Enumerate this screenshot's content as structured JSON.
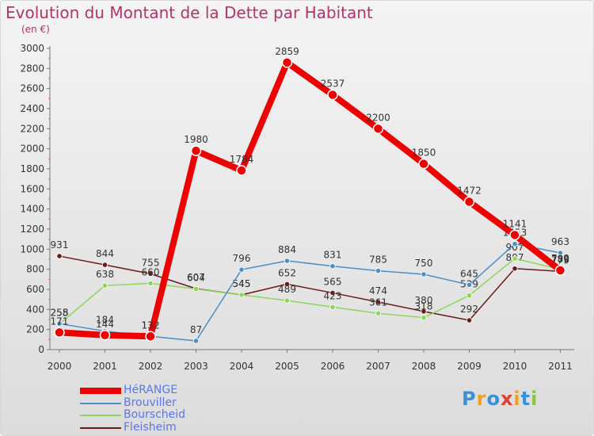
{
  "chart_data": {
    "type": "line",
    "title": "Evolution du Montant de la Dette par Habitant",
    "subtitle": "(en €)",
    "categories": [
      "2000",
      "2001",
      "2002",
      "2003",
      "2004",
      "2005",
      "2006",
      "2007",
      "2008",
      "2009",
      "2010",
      "2011"
    ],
    "ylim": [
      0,
      3000
    ],
    "yticks": [
      "0",
      "200",
      "400",
      "600",
      "800",
      "1000",
      "1200",
      "1400",
      "1600",
      "1800",
      "2000",
      "2200",
      "2400",
      "2600",
      "2800",
      "3000"
    ],
    "legend_position": "bottom-left",
    "grid": false,
    "series": [
      {
        "name": "HéRANGE",
        "color": "#ee0000",
        "values": [
          171,
          144,
          132,
          1980,
          1784,
          2859,
          2537,
          2200,
          1850,
          1472,
          1141,
          789
        ]
      },
      {
        "name": "Brouviller",
        "color": "#4c8ec6",
        "values": [
          258,
          184,
          132,
          87,
          796,
          884,
          831,
          785,
          750,
          645,
          1053,
          963
        ]
      },
      {
        "name": "Bourscheid",
        "color": "#8cd65a",
        "values": [
          255,
          638,
          660,
          604,
          545,
          489,
          423,
          361,
          318,
          539,
          907,
          799
        ]
      },
      {
        "name": "Fleisheim",
        "color": "#6b1a1a",
        "values": [
          931,
          844,
          755,
          607,
          545,
          652,
          565,
          474,
          380,
          292,
          807,
          779
        ]
      }
    ]
  },
  "logo": {
    "text": "Proxiti",
    "letters": [
      "P",
      "r",
      "o",
      "x",
      "i",
      "t",
      "i"
    ],
    "colors": [
      "#3a8fd9",
      "#f0a020",
      "#3a8fd9",
      "#e04030",
      "#f0a020",
      "#3a8fd9",
      "#8cc63f"
    ]
  }
}
